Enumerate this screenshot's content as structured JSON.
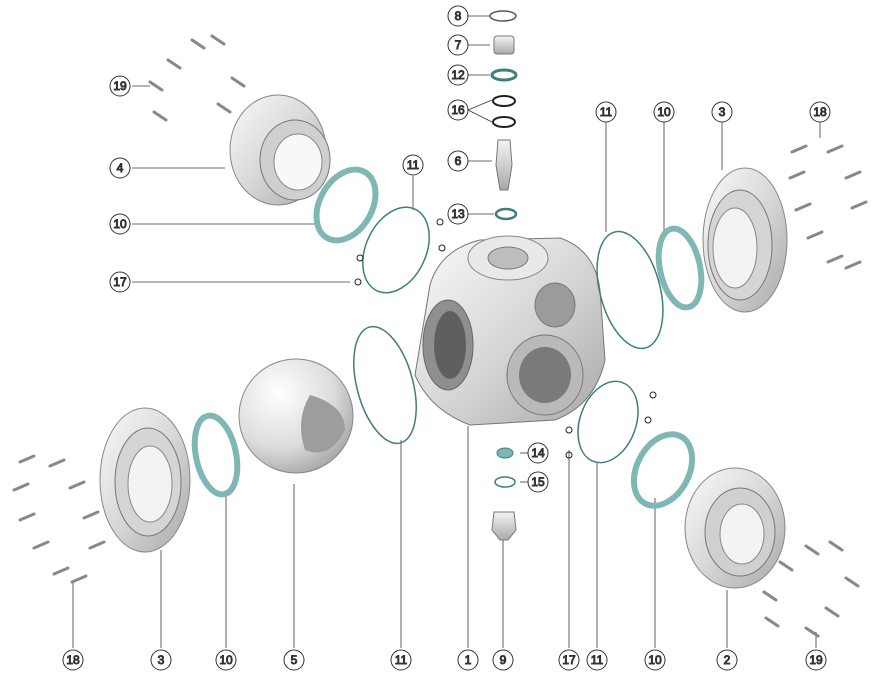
{
  "diagram": {
    "colors": {
      "metal_light": "#f2f2f2",
      "metal_mid": "#cfcfcf",
      "metal_dark": "#9a9a9a",
      "seal_teal": "#7fb7b4",
      "seal_teal_dark": "#3e7f7b",
      "line": "#3a3a3a",
      "callout_circle": "#ffffff"
    },
    "callouts": {
      "c8": "8",
      "c7": "7",
      "c12": "12",
      "c16": "16",
      "c6": "6",
      "c13": "13",
      "c19_top": "19",
      "c4": "4",
      "c10_left": "10",
      "c17_left": "17",
      "c11_upper_left": "11",
      "c11_upper_right": "11",
      "c10_upper_right": "10",
      "c3_right": "3",
      "c18_right": "18",
      "c14": "14",
      "c15": "15",
      "c18_bottom": "18",
      "c3_bottom": "3",
      "c10_bottom_left": "10",
      "c5": "5",
      "c11_bottom_left": "11",
      "c1": "1",
      "c9": "9",
      "c17_bottom": "17",
      "c11_bottom_right": "11",
      "c10_bottom_right": "10",
      "c2": "2",
      "c19_bottom": "19"
    }
  }
}
